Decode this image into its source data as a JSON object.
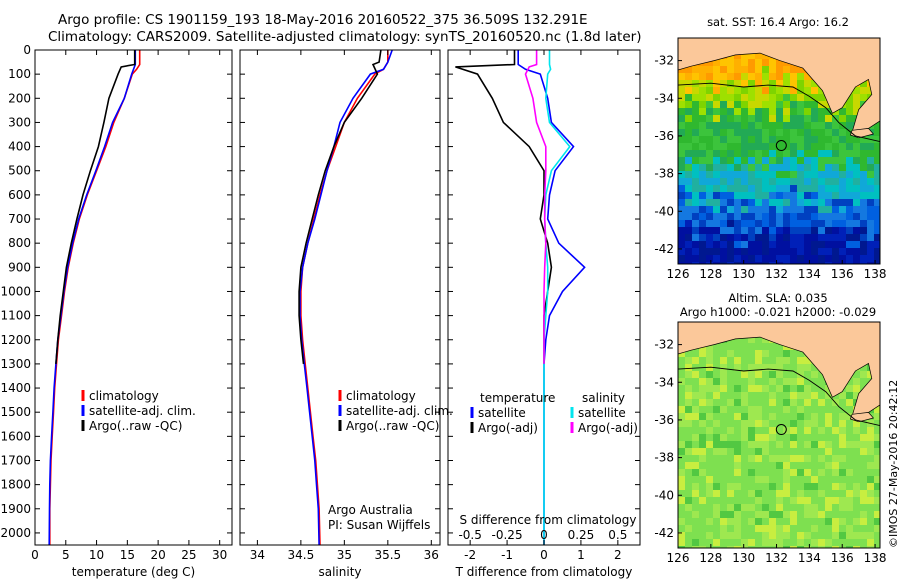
{
  "header": {
    "line1": "Argo profile: CS 1901159_193 18-May-2016 20160522_375 36.509S 132.291E",
    "line2": "Climatology: CARS2009. Satellite-adjusted climatology: synTS_20160520.nc (1.8d later)"
  },
  "map1": {
    "title": "sat. SST: 16.4 Argo: 16.2"
  },
  "map2": {
    "title1": "Altim. SLA: 0.035",
    "title2": "Argo h1000: -0.021 h2000: -0.029"
  },
  "stamp": "©IMOS 27-May-2016 20:42:12",
  "colors": {
    "climatology": "#ff0000",
    "satellite": "#0000ff",
    "argo": "#000000",
    "sal_sat": "#00e5ee",
    "sal_argo": "#ff00ff"
  },
  "chart_data": [
    {
      "type": "line",
      "xlabel": "temperature (deg C)",
      "xlim": [
        0,
        32
      ],
      "xticks": [
        0,
        5,
        10,
        15,
        20,
        25,
        30
      ],
      "ylim": [
        2050,
        0
      ],
      "yticks": [
        0,
        100,
        200,
        300,
        400,
        500,
        600,
        700,
        800,
        900,
        1000,
        1100,
        1200,
        1300,
        1400,
        1500,
        1600,
        1700,
        1800,
        1900,
        2000
      ],
      "legend": [
        "climatology",
        "satellite-adj. clim.",
        "Argo(..raw -QC)"
      ],
      "legend_position": "middle-left",
      "series": [
        {
          "name": "climatology",
          "x": [
            17,
            17,
            16.5,
            15.8,
            14.5,
            12.8,
            11.5,
            10,
            8.5,
            7.2,
            6.2,
            5.4,
            4.8,
            4.3,
            3.8,
            3.5,
            3.2,
            3,
            2.8,
            2.6,
            2.5,
            2.4,
            2.4
          ],
          "y": [
            0,
            60,
            80,
            100,
            200,
            300,
            400,
            500,
            600,
            700,
            800,
            900,
            1000,
            1100,
            1200,
            1300,
            1400,
            1500,
            1600,
            1700,
            1800,
            1900,
            2050
          ]
        },
        {
          "name": "satellite-adj. clim.",
          "x": [
            16.3,
            16.3,
            16,
            15.7,
            14.5,
            12.6,
            11.3,
            9.9,
            8.4,
            7.1,
            6.1,
            5.3,
            4.7,
            4.2,
            3.7,
            3.4,
            3.1,
            2.9,
            2.7,
            2.5,
            2.4,
            2.35,
            2.3
          ],
          "y": [
            0,
            60,
            80,
            100,
            200,
            300,
            400,
            500,
            600,
            700,
            800,
            900,
            1000,
            1100,
            1200,
            1300,
            1400,
            1500,
            1600,
            1700,
            1800,
            1900,
            2050
          ]
        },
        {
          "name": "Argo(..raw -QC)",
          "x": [
            16.2,
            16.2,
            14,
            13.5,
            12,
            11.2,
            10.3,
            9,
            7.8,
            6.8,
            5.9,
            5.1,
            4.6,
            4.1,
            3.7,
            3.4
          ],
          "y": [
            0,
            60,
            70,
            100,
            200,
            300,
            400,
            500,
            600,
            700,
            800,
            900,
            1000,
            1100,
            1200,
            1300
          ]
        }
      ]
    },
    {
      "type": "line",
      "xlabel": "salinity",
      "xlim": [
        33.8,
        36.1
      ],
      "xticks": [
        34,
        34.5,
        35,
        35.5,
        36
      ],
      "ylim": [
        2050,
        0
      ],
      "annotations": [
        "Argo Australia",
        "PI: Susan Wijffels"
      ],
      "legend": [
        "climatology",
        "satellite-adj. clim.",
        "Argo(..raw -QC)"
      ],
      "legend_position": "middle-right",
      "series": [
        {
          "name": "climatology",
          "x": [
            35.5,
            35.5,
            35.45,
            35.35,
            35.15,
            35.0,
            34.9,
            34.8,
            34.72,
            34.65,
            34.58,
            34.52,
            34.5,
            34.5,
            34.52,
            34.55,
            34.58,
            34.61,
            34.64,
            34.67,
            34.69,
            34.71,
            34.72
          ],
          "y": [
            0,
            50,
            80,
            100,
            200,
            300,
            400,
            500,
            600,
            700,
            800,
            900,
            1000,
            1100,
            1200,
            1300,
            1400,
            1500,
            1600,
            1700,
            1800,
            1900,
            2050
          ]
        },
        {
          "name": "satellite-adj. clim.",
          "x": [
            35.55,
            35.5,
            35.45,
            35.3,
            35.1,
            34.95,
            34.88,
            34.8,
            34.73,
            34.66,
            34.58,
            34.52,
            34.49,
            34.49,
            34.51,
            34.54,
            34.57,
            34.6,
            34.63,
            34.66,
            34.68,
            34.7,
            34.71
          ],
          "y": [
            0,
            50,
            80,
            100,
            200,
            300,
            400,
            500,
            600,
            700,
            800,
            900,
            1000,
            1100,
            1200,
            1300,
            1400,
            1500,
            1600,
            1700,
            1800,
            1900,
            2050
          ]
        },
        {
          "name": "Argo(..raw -QC)",
          "x": [
            35.42,
            35.4,
            35.33,
            35.38,
            35.2,
            35.0,
            34.88,
            34.78,
            34.7,
            34.63,
            34.56,
            34.5,
            34.48,
            34.48,
            34.5,
            34.53
          ],
          "y": [
            0,
            50,
            60,
            100,
            200,
            300,
            400,
            500,
            600,
            700,
            800,
            900,
            1000,
            1100,
            1200,
            1300
          ]
        }
      ]
    },
    {
      "type": "line",
      "xlabel": "T difference from climatology",
      "xlabel_top": "S difference from climatology",
      "xlim": [
        -2.6,
        2.6
      ],
      "xticks": [
        -2,
        -1,
        0,
        1,
        2
      ],
      "xticks_top": [
        "-0.5",
        "-0.25",
        "0",
        "0.25",
        "0.5"
      ],
      "ylim": [
        2050,
        0
      ],
      "legend": [
        "temperature",
        "satellite",
        "Argo(-adj)",
        "salinity",
        "satellite",
        "Argo(-adj)"
      ],
      "legend_position": "middle",
      "series": [
        {
          "name": "satellite",
          "group": "temperature",
          "x": [
            -0.7,
            -0.7,
            -0.5,
            -0.1,
            0.1,
            0.2,
            0.8,
            0.3,
            0.15,
            0.1,
            0.4,
            1.1,
            0.5,
            0.15,
            0.05,
            0,
            0,
            0,
            0,
            0,
            0,
            0,
            0
          ],
          "y": [
            0,
            60,
            80,
            100,
            200,
            300,
            400,
            500,
            600,
            700,
            800,
            900,
            1000,
            1100,
            1200,
            1300,
            1400,
            1500,
            1600,
            1700,
            1800,
            1900,
            2050
          ]
        },
        {
          "name": "Argo(-adj)",
          "group": "temperature",
          "x": [
            -0.8,
            -0.8,
            -2.4,
            -1.8,
            -1.4,
            -1.1,
            -0.4,
            0,
            0,
            -0.1,
            0.1,
            0.2,
            0.1,
            0,
            0,
            0
          ],
          "y": [
            0,
            60,
            70,
            100,
            200,
            300,
            400,
            500,
            600,
            700,
            800,
            900,
            1000,
            1100,
            1200,
            1300
          ]
        },
        {
          "name": "satellite",
          "group": "salinity",
          "x": [
            0.15,
            0.15,
            0.18,
            0.1,
            0.05,
            0.15,
            0.7,
            0.2,
            0.05,
            0.02,
            0.05,
            0.1,
            0.1,
            0.05,
            0,
            0,
            0,
            0,
            0,
            0,
            0,
            0,
            0
          ],
          "y": [
            0,
            60,
            80,
            100,
            200,
            300,
            400,
            500,
            600,
            700,
            800,
            900,
            1000,
            1100,
            1200,
            1300,
            1400,
            1500,
            1600,
            1700,
            1800,
            1900,
            2050
          ]
        },
        {
          "name": "Argo(-adj)",
          "group": "salinity",
          "x": [
            -0.2,
            -0.2,
            -0.4,
            -0.5,
            -0.3,
            -0.2,
            0.05,
            0.05,
            0.02,
            0.02,
            0.05,
            0.02,
            0,
            0,
            0,
            0
          ],
          "y": [
            0,
            60,
            70,
            100,
            200,
            300,
            400,
            500,
            600,
            700,
            800,
            900,
            1000,
            1100,
            1200,
            1300
          ]
        }
      ]
    },
    {
      "type": "heatmap",
      "xticks": [
        126,
        128,
        130,
        132,
        134,
        136,
        138
      ],
      "yticks": [
        -32,
        -34,
        -36,
        -38,
        -40,
        -42
      ],
      "xlim": [
        126,
        138.3
      ],
      "ylim": [
        -42.8,
        -30.8
      ],
      "marker": [
        132.291,
        -36.509
      ]
    },
    {
      "type": "heatmap",
      "xticks": [
        126,
        128,
        130,
        132,
        134,
        136,
        138
      ],
      "yticks": [
        -32,
        -34,
        -36,
        -38,
        -40,
        -42
      ],
      "xlim": [
        126,
        138.3
      ],
      "ylim": [
        -42.8,
        -30.8
      ],
      "marker": [
        132.291,
        -36.509
      ]
    }
  ]
}
